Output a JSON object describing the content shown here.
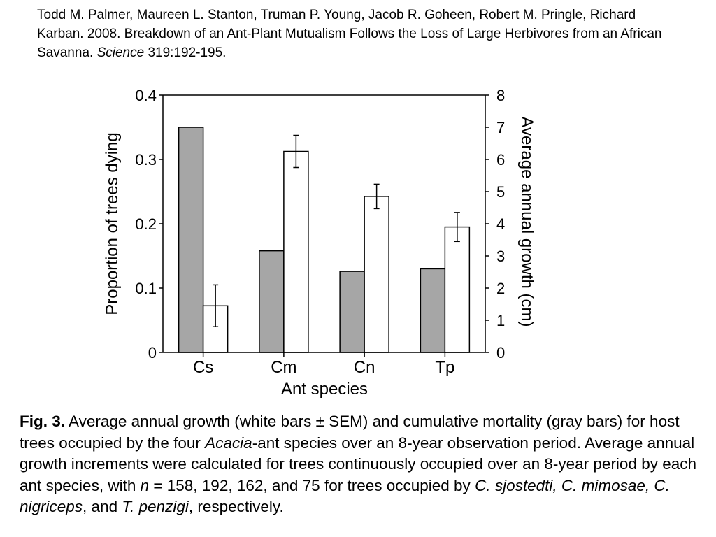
{
  "citation": {
    "authors": "Todd M. Palmer, Maureen L. Stanton, Truman P. Young, Jacob R. Goheen, Robert M. Pringle, Richard Karban. 2008.",
    "title": "Breakdown of an Ant-Plant Mutualism Follows the Loss of Large Herbivores from an African Savanna.",
    "journal": "Science",
    "volume_pages": "319:192-195."
  },
  "chart_data": {
    "type": "bar",
    "xlabel": "Ant species",
    "ylabel": "Proportion of trees dying",
    "y2label": "Average annual growth (cm)",
    "categories": [
      "Cs",
      "Cm",
      "Cn",
      "Tp"
    ],
    "ylim": [
      0,
      0.4
    ],
    "y2lim": [
      0,
      8
    ],
    "yticks": [
      "0",
      "0.1",
      "0.2",
      "0.3",
      "0.4"
    ],
    "y2ticks": [
      "0",
      "1",
      "2",
      "3",
      "4",
      "5",
      "6",
      "7",
      "8"
    ],
    "series": [
      {
        "axis": "left",
        "color": "#a6a6a6",
        "values": [
          0.35,
          0.158,
          0.126,
          0.13
        ]
      },
      {
        "axis": "right",
        "color": "#ffffff",
        "values": [
          1.45,
          6.25,
          4.85,
          3.9
        ],
        "errors": [
          0.65,
          0.5,
          0.38,
          0.45
        ]
      }
    ],
    "grid": false,
    "legend": "none"
  },
  "caption": {
    "label": "Fig. 3.",
    "text1": " Average annual growth (white bars ± SEM) and cumulative mortality (gray bars) for host trees occupied by the four ",
    "genus": "Acacia",
    "text2": "-ant species over an 8-year observation period. Average annual growth increments were calculated for trees continuously occupied over an 8-year period by each ant species, with ",
    "n_symbol": "n",
    "text3": " = 158, 192, 162, and 75 for trees occupied by ",
    "species": "C. sjostedti, C. mimosae, C. nigriceps",
    "text4": ", and ",
    "species_last": "T. penzigi",
    "text5": ", respectively."
  }
}
